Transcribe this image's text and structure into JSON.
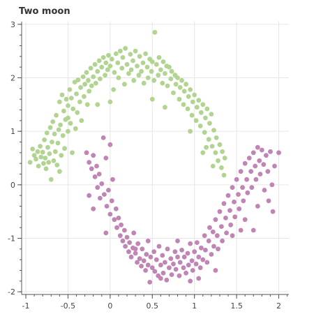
{
  "chart_data": {
    "type": "scatter",
    "title": "Two moon",
    "xlabel": "",
    "ylabel": "",
    "xlim": [
      -1.05,
      2.12
    ],
    "ylim": [
      -2.05,
      3.05
    ],
    "x_ticks": [
      -1,
      -0.5,
      0,
      0.5,
      1,
      1.5,
      2
    ],
    "x_tick_labels": [
      "-1",
      "-0.5",
      "0",
      "0.5",
      "1",
      "1.5",
      "2"
    ],
    "y_ticks": [
      -2,
      -1,
      0,
      1,
      2,
      3
    ],
    "y_tick_labels": [
      "-2",
      "-1",
      "0",
      "1",
      "2",
      "3"
    ],
    "grid": true,
    "legend": "none",
    "series": [
      {
        "color": "#b2d491",
        "points": [
          [
            -0.95,
            0.42
          ],
          [
            -0.92,
            0.67
          ],
          [
            -0.9,
            0.55
          ],
          [
            -0.88,
            0.48
          ],
          [
            -0.86,
            0.62
          ],
          [
            -0.85,
            0.35
          ],
          [
            -0.83,
            0.72
          ],
          [
            -0.82,
            0.52
          ],
          [
            -0.8,
            0.61
          ],
          [
            -0.79,
            0.4
          ],
          [
            -0.78,
            0.84
          ],
          [
            -0.77,
            0.5
          ],
          [
            -0.76,
            0.3
          ],
          [
            -0.75,
            0.97
          ],
          [
            -0.74,
            0.7
          ],
          [
            -0.73,
            0.42
          ],
          [
            -0.72,
            0.58
          ],
          [
            -0.71,
            1.07
          ],
          [
            -0.7,
            0.1
          ],
          [
            -0.69,
            0.8
          ],
          [
            -0.68,
            1.18
          ],
          [
            -0.67,
            0.45
          ],
          [
            -0.66,
            0.95
          ],
          [
            -0.65,
            0.62
          ],
          [
            -0.64,
            1.3
          ],
          [
            -0.63,
            0.37
          ],
          [
            -0.62,
            0.78
          ],
          [
            -0.61,
            1.03
          ],
          [
            -0.6,
            1.55
          ],
          [
            -0.6,
            0.25
          ],
          [
            -0.59,
            1.12
          ],
          [
            -0.58,
            0.55
          ],
          [
            -0.57,
            1.68
          ],
          [
            -0.56,
            0.92
          ],
          [
            -0.55,
            1.38
          ],
          [
            -0.54,
            0.68
          ],
          [
            -0.53,
            1.22
          ],
          [
            -0.52,
            1.6
          ],
          [
            -0.5,
            1.0
          ],
          [
            -0.5,
            1.48
          ],
          [
            -0.48,
            1.78
          ],
          [
            -0.47,
            1.15
          ],
          [
            -0.46,
            1.62
          ],
          [
            -0.45,
            0.6
          ],
          [
            -0.44,
            1.42
          ],
          [
            -0.42,
            1.92
          ],
          [
            -0.41,
            1.05
          ],
          [
            -0.4,
            1.7
          ],
          [
            -0.39,
            1.35
          ],
          [
            -0.38,
            1.96
          ],
          [
            -0.36,
            1.55
          ],
          [
            -0.35,
            1.82
          ],
          [
            -0.34,
            1.2
          ],
          [
            -0.32,
            2.02
          ],
          [
            -0.31,
            1.65
          ],
          [
            -0.3,
            1.88
          ],
          [
            -0.28,
            2.1
          ],
          [
            -0.27,
            1.5
          ],
          [
            -0.26,
            1.95
          ],
          [
            -0.25,
            1.75
          ],
          [
            -0.23,
            2.18
          ],
          [
            -0.22,
            1.85
          ],
          [
            -0.2,
            2.02
          ],
          [
            -0.18,
            2.25
          ],
          [
            -0.17,
            1.9
          ],
          [
            -0.15,
            2.12
          ],
          [
            -0.13,
            2.32
          ],
          [
            -0.12,
            1.98
          ],
          [
            -0.1,
            2.2
          ],
          [
            -0.08,
            2.38
          ],
          [
            -0.06,
            2.05
          ],
          [
            -0.05,
            2.28
          ],
          [
            -0.03,
            2.15
          ],
          [
            -0.02,
            2.42
          ],
          [
            0.0,
            1.55
          ],
          [
            0.0,
            2.22
          ],
          [
            0.02,
            2.35
          ],
          [
            0.04,
            1.78
          ],
          [
            0.05,
            2.1
          ],
          [
            0.07,
            2.45
          ],
          [
            0.09,
            2.28
          ],
          [
            0.1,
            2.0
          ],
          [
            0.12,
            2.5
          ],
          [
            0.14,
            2.18
          ],
          [
            0.15,
            2.38
          ],
          [
            0.17,
            1.88
          ],
          [
            0.18,
            2.55
          ],
          [
            0.2,
            2.25
          ],
          [
            0.22,
            2.08
          ],
          [
            0.24,
            2.44
          ],
          [
            0.25,
            2.15
          ],
          [
            0.27,
            2.32
          ],
          [
            0.28,
            1.95
          ],
          [
            0.3,
            2.5
          ],
          [
            0.32,
            2.22
          ],
          [
            0.34,
            2.05
          ],
          [
            0.35,
            2.4
          ],
          [
            0.37,
            2.12
          ],
          [
            0.39,
            2.28
          ],
          [
            0.4,
            1.9
          ],
          [
            0.42,
            2.45
          ],
          [
            0.44,
            2.2
          ],
          [
            0.45,
            2.0
          ],
          [
            0.47,
            2.35
          ],
          [
            0.49,
            2.12
          ],
          [
            0.5,
            2.3
          ],
          [
            0.52,
            1.95
          ],
          [
            0.53,
            2.85
          ],
          [
            0.55,
            2.25
          ],
          [
            0.57,
            2.05
          ],
          [
            0.58,
            2.38
          ],
          [
            0.6,
            2.15
          ],
          [
            0.62,
            1.9
          ],
          [
            0.63,
            2.3
          ],
          [
            0.65,
            2.08
          ],
          [
            0.67,
            2.22
          ],
          [
            0.68,
            1.85
          ],
          [
            0.7,
            2.2
          ],
          [
            0.72,
            1.98
          ],
          [
            0.73,
            2.12
          ],
          [
            0.75,
            1.72
          ],
          [
            0.77,
            2.05
          ],
          [
            0.78,
            1.88
          ],
          [
            0.8,
            2.0
          ],
          [
            0.82,
            1.6
          ],
          [
            0.83,
            1.82
          ],
          [
            0.85,
            1.95
          ],
          [
            0.87,
            1.5
          ],
          [
            0.88,
            1.75
          ],
          [
            0.9,
            1.88
          ],
          [
            0.92,
            1.42
          ],
          [
            0.93,
            1.65
          ],
          [
            0.95,
            1.78
          ],
          [
            0.97,
            1.3
          ],
          [
            0.98,
            1.55
          ],
          [
            1.0,
            1.68
          ],
          [
            1.02,
            1.2
          ],
          [
            1.03,
            1.45
          ],
          [
            1.05,
            1.58
          ],
          [
            1.07,
            1.1
          ],
          [
            1.08,
            1.35
          ],
          [
            1.1,
            1.5
          ],
          [
            1.12,
            0.98
          ],
          [
            1.13,
            1.25
          ],
          [
            1.15,
            1.42
          ],
          [
            1.17,
            0.85
          ],
          [
            1.18,
            1.15
          ],
          [
            1.2,
            1.32
          ],
          [
            1.21,
            0.72
          ],
          [
            1.23,
            1.02
          ],
          [
            1.25,
            0.6
          ],
          [
            1.26,
            0.88
          ],
          [
            1.28,
            0.45
          ],
          [
            1.3,
            0.75
          ],
          [
            1.32,
            0.32
          ],
          [
            1.33,
            0.62
          ],
          [
            1.35,
            0.18
          ],
          [
            1.36,
            0.5
          ],
          [
            1.1,
            0.6
          ],
          [
            1.22,
            0.35
          ],
          [
            0.65,
            1.45
          ],
          [
            -0.15,
            1.5
          ],
          [
            -0.5,
            1.25
          ],
          [
            0.5,
            1.6
          ],
          [
            0.95,
            1.0
          ],
          [
            1.14,
            0.7
          ]
        ]
      },
      {
        "color": "#c084b5",
        "points": [
          [
            -0.28,
            0.6
          ],
          [
            -0.25,
            0.42
          ],
          [
            -0.22,
            0.3
          ],
          [
            -0.2,
            0.55
          ],
          [
            -0.18,
            0.15
          ],
          [
            -0.16,
            0.35
          ],
          [
            -0.15,
            -0.05
          ],
          [
            -0.13,
            0.2
          ],
          [
            -0.12,
            -0.25
          ],
          [
            -0.1,
            0.02
          ],
          [
            -0.08,
            0.88
          ],
          [
            -0.07,
            -0.18
          ],
          [
            -0.05,
            0.5
          ],
          [
            -0.04,
            -0.4
          ],
          [
            -0.02,
            -0.1
          ],
          [
            0.0,
            0.75
          ],
          [
            0.0,
            -0.55
          ],
          [
            0.02,
            -0.3
          ],
          [
            0.03,
            0.1
          ],
          [
            0.05,
            -0.65
          ],
          [
            0.07,
            -0.45
          ],
          [
            0.08,
            -0.8
          ],
          [
            0.1,
            -0.62
          ],
          [
            0.12,
            -0.95
          ],
          [
            0.13,
            -0.75
          ],
          [
            0.15,
            -1.05
          ],
          [
            0.17,
            -0.85
          ],
          [
            0.18,
            -1.15
          ],
          [
            0.2,
            -0.98
          ],
          [
            0.22,
            -1.25
          ],
          [
            0.23,
            -1.08
          ],
          [
            0.25,
            -1.35
          ],
          [
            0.27,
            -1.18
          ],
          [
            0.28,
            -0.9
          ],
          [
            0.3,
            -1.28
          ],
          [
            0.32,
            -1.45
          ],
          [
            0.33,
            -1.1
          ],
          [
            0.35,
            -1.38
          ],
          [
            0.37,
            -1.52
          ],
          [
            0.38,
            -1.2
          ],
          [
            0.4,
            -1.42
          ],
          [
            0.42,
            -1.6
          ],
          [
            0.43,
            -1.3
          ],
          [
            0.45,
            -1.5
          ],
          [
            0.47,
            -1.82
          ],
          [
            0.48,
            -1.35
          ],
          [
            0.5,
            -1.55
          ],
          [
            0.52,
            -1.25
          ],
          [
            0.53,
            -1.62
          ],
          [
            0.55,
            -1.4
          ],
          [
            0.57,
            -1.7
          ],
          [
            0.58,
            -1.15
          ],
          [
            0.6,
            -1.5
          ],
          [
            0.62,
            -1.32
          ],
          [
            0.63,
            -1.65
          ],
          [
            0.65,
            -1.45
          ],
          [
            0.67,
            -1.78
          ],
          [
            0.68,
            -1.2
          ],
          [
            0.7,
            -1.55
          ],
          [
            0.72,
            -1.38
          ],
          [
            0.73,
            -1.68
          ],
          [
            0.75,
            -1.48
          ],
          [
            0.77,
            -1.25
          ],
          [
            0.78,
            -1.58
          ],
          [
            0.8,
            -1.35
          ],
          [
            0.82,
            -1.7
          ],
          [
            0.83,
            -1.45
          ],
          [
            0.85,
            -1.22
          ],
          [
            0.87,
            -1.55
          ],
          [
            0.88,
            -1.35
          ],
          [
            0.9,
            -1.65
          ],
          [
            0.92,
            -1.28
          ],
          [
            0.93,
            -1.5
          ],
          [
            0.95,
            -1.1
          ],
          [
            0.97,
            -1.42
          ],
          [
            0.98,
            -1.6
          ],
          [
            1.0,
            -1.25
          ],
          [
            1.02,
            -1.48
          ],
          [
            1.03,
            -1.08
          ],
          [
            1.05,
            -1.35
          ],
          [
            1.07,
            -1.55
          ],
          [
            1.08,
            -1.18
          ],
          [
            1.1,
            -1.4
          ],
          [
            1.12,
            -0.95
          ],
          [
            1.13,
            -1.22
          ],
          [
            1.15,
            -1.45
          ],
          [
            1.17,
            -1.05
          ],
          [
            1.18,
            -0.8
          ],
          [
            1.2,
            -1.3
          ],
          [
            1.22,
            -0.88
          ],
          [
            1.23,
            -1.15
          ],
          [
            1.25,
            -0.65
          ],
          [
            1.27,
            -0.95
          ],
          [
            1.28,
            -1.2
          ],
          [
            1.3,
            -0.5
          ],
          [
            1.32,
            -0.78
          ],
          [
            1.33,
            -1.05
          ],
          [
            1.35,
            -0.35
          ],
          [
            1.37,
            -0.62
          ],
          [
            1.38,
            -0.9
          ],
          [
            1.4,
            -0.2
          ],
          [
            1.42,
            -0.48
          ],
          [
            1.43,
            -0.75
          ],
          [
            1.45,
            -0.05
          ],
          [
            1.47,
            -0.32
          ],
          [
            1.48,
            -0.6
          ],
          [
            1.5,
            0.1
          ],
          [
            1.52,
            -0.18
          ],
          [
            1.53,
            -0.45
          ],
          [
            1.55,
            0.25
          ],
          [
            1.57,
            -0.05
          ],
          [
            1.58,
            -0.3
          ],
          [
            1.6,
            0.4
          ],
          [
            1.62,
            0.1
          ],
          [
            1.63,
            -0.15
          ],
          [
            1.65,
            0.5
          ],
          [
            1.67,
            0.25
          ],
          [
            1.68,
            -0.05
          ],
          [
            1.7,
            0.6
          ],
          [
            1.72,
            0.35
          ],
          [
            1.73,
            0.1
          ],
          [
            1.75,
            0.7
          ],
          [
            1.77,
            0.45
          ],
          [
            1.78,
            0.2
          ],
          [
            1.8,
            0.65
          ],
          [
            1.82,
            0.38
          ],
          [
            1.83,
            -0.1
          ],
          [
            1.85,
            0.55
          ],
          [
            1.87,
            0.25
          ],
          [
            1.88,
            -0.3
          ],
          [
            1.9,
            0.62
          ],
          [
            1.92,
            0.0
          ],
          [
            1.93,
            -0.5
          ],
          [
            1.95,
            0.35
          ],
          [
            2.0,
            0.6
          ],
          [
            1.55,
            -0.85
          ],
          [
            1.45,
            -0.95
          ],
          [
            1.25,
            -1.6
          ],
          [
            1.05,
            -1.75
          ],
          [
            0.6,
            -1.75
          ],
          [
            0.3,
            -1.2
          ],
          [
            -0.05,
            -0.9
          ],
          [
            -0.25,
            -0.2
          ],
          [
            0.8,
            -1.05
          ],
          [
            1.6,
            -0.65
          ],
          [
            1.7,
            -0.85
          ],
          [
            1.75,
            -0.4
          ],
          [
            0.95,
            -1.8
          ],
          [
            0.45,
            -1.05
          ],
          [
            -0.2,
            -0.45
          ]
        ]
      }
    ]
  }
}
